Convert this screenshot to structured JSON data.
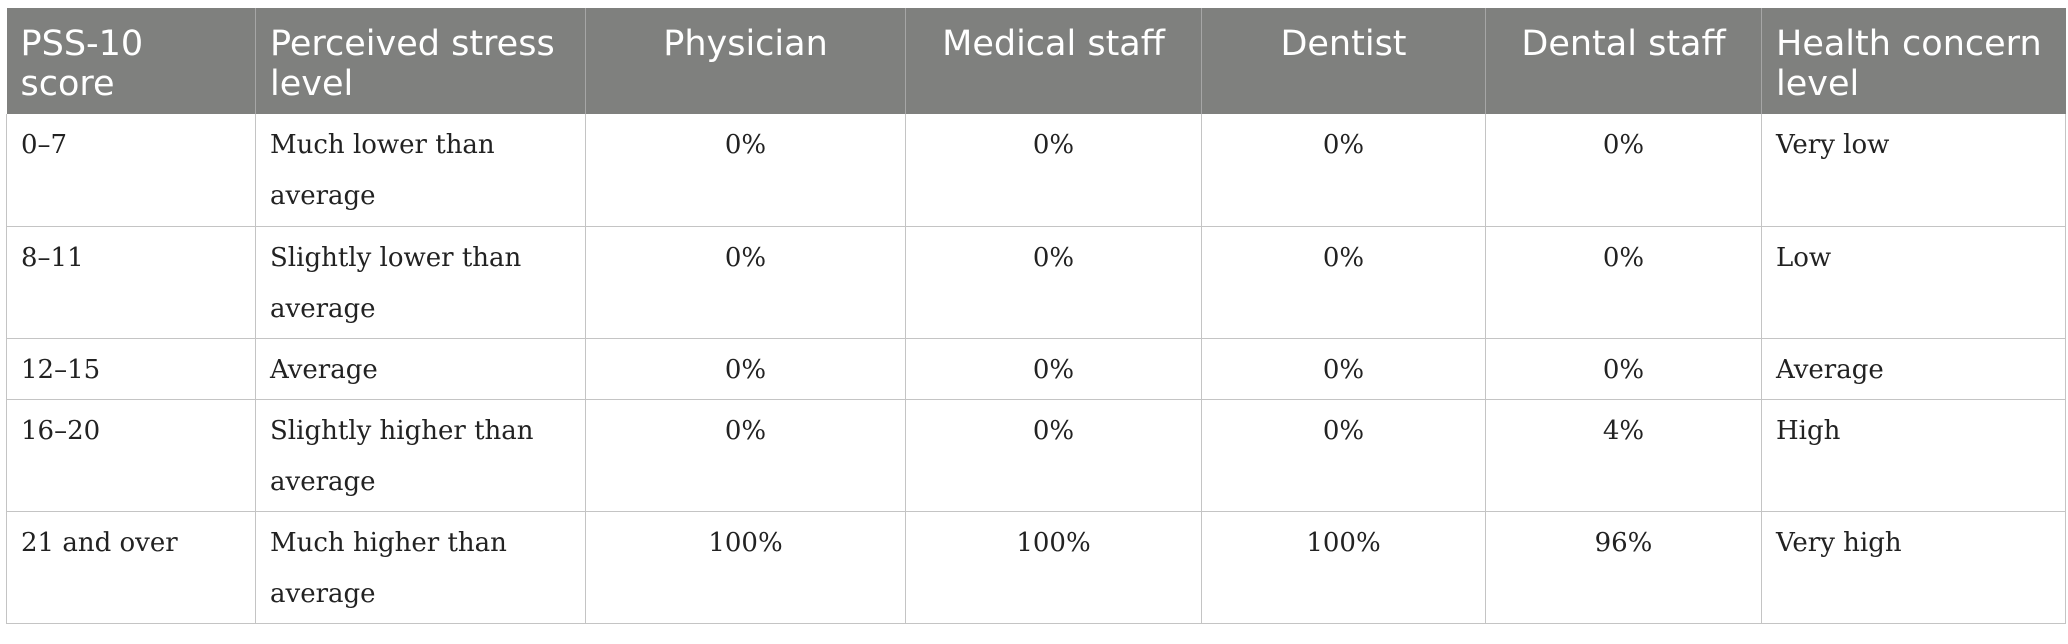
{
  "table": {
    "headers": [
      "PSS-10 score",
      "Perceived stress level",
      "Physician",
      "Medical staff",
      "Dentist",
      "Dental staff",
      "Health concern level"
    ],
    "rows": [
      [
        "0–7",
        "Much lower than average",
        "0%",
        "0%",
        "0%",
        "0%",
        "Very low"
      ],
      [
        "8–11",
        "Slightly lower than average",
        "0%",
        "0%",
        "0%",
        "0%",
        "Low"
      ],
      [
        "12–15",
        "Average",
        "0%",
        "0%",
        "0%",
        "0%",
        "Average"
      ],
      [
        "16–20",
        "Slightly higher than average",
        "0%",
        "0%",
        "0%",
        "4%",
        "High"
      ],
      [
        "21 and over",
        "Much higher than average",
        "100%",
        "100%",
        "100%",
        "96%",
        "Very high"
      ]
    ]
  }
}
